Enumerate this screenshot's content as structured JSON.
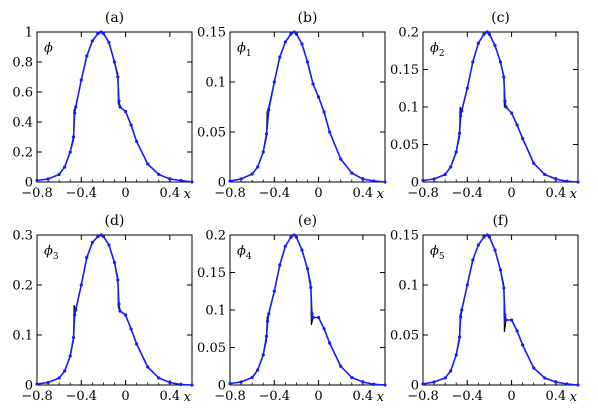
{
  "figure": {
    "panels": [
      {
        "label": "(a)",
        "var": "ϕ",
        "sub": "",
        "xlabel": "x",
        "ymax": 1.0,
        "yticks": [
          {
            "v": 0,
            "t": "0"
          },
          {
            "v": 0.2,
            "t": "0.2"
          },
          {
            "v": 0.4,
            "t": "0.4"
          },
          {
            "v": 0.6,
            "t": "0.6"
          },
          {
            "v": 0.8,
            "t": "0.8"
          },
          {
            "v": 1.0,
            "t": "1"
          }
        ]
      },
      {
        "label": "(b)",
        "var": "ϕ",
        "sub": "1",
        "xlabel": "x",
        "ymax": 0.15,
        "yticks": [
          {
            "v": 0,
            "t": "0"
          },
          {
            "v": 0.05,
            "t": "0.05"
          },
          {
            "v": 0.1,
            "t": "0.1"
          },
          {
            "v": 0.15,
            "t": "0.15"
          }
        ]
      },
      {
        "label": "(c)",
        "var": "ϕ",
        "sub": "2",
        "xlabel": "x",
        "ymax": 0.2,
        "yticks": [
          {
            "v": 0,
            "t": "0"
          },
          {
            "v": 0.05,
            "t": "0.05"
          },
          {
            "v": 0.1,
            "t": "0.1"
          },
          {
            "v": 0.15,
            "t": "0.15"
          },
          {
            "v": 0.2,
            "t": "0.2"
          }
        ]
      },
      {
        "label": "(d)",
        "var": "ϕ",
        "sub": "3",
        "xlabel": "x",
        "ymax": 0.3,
        "yticks": [
          {
            "v": 0,
            "t": "0"
          },
          {
            "v": 0.1,
            "t": "0.1"
          },
          {
            "v": 0.2,
            "t": "0.2"
          },
          {
            "v": 0.3,
            "t": "0.3"
          }
        ]
      },
      {
        "label": "(e)",
        "var": "ϕ",
        "sub": "4",
        "xlabel": "x",
        "ymax": 0.2,
        "yticks": [
          {
            "v": 0,
            "t": "0"
          },
          {
            "v": 0.05,
            "t": "0.05"
          },
          {
            "v": 0.1,
            "t": "0.1"
          },
          {
            "v": 0.15,
            "t": "0.15"
          },
          {
            "v": 0.2,
            "t": "0.2"
          }
        ]
      },
      {
        "label": "(f)",
        "var": "ϕ",
        "sub": "5",
        "xlabel": "x",
        "ymax": 0.15,
        "yticks": [
          {
            "v": 0,
            "t": "0"
          },
          {
            "v": 0.05,
            "t": "0.05"
          },
          {
            "v": 0.1,
            "t": "0.1"
          },
          {
            "v": 0.15,
            "t": "0.15"
          }
        ]
      }
    ],
    "xticks": [
      {
        "v": -0.8,
        "t": "−0.8"
      },
      {
        "v": -0.4,
        "t": "−0.4"
      },
      {
        "v": 0,
        "t": "0"
      },
      {
        "v": 0.4,
        "t": "0.4"
      }
    ]
  },
  "colors": {
    "reference": "#000000",
    "computed": "#1a1aff"
  },
  "chart_data": [
    {
      "type": "line",
      "panel": "(a)",
      "xlim": [
        -0.8,
        0.6
      ],
      "ylim": [
        0,
        1.0
      ],
      "grid": false,
      "series": [
        {
          "role": "reference",
          "x": [
            -0.8,
            -0.7,
            -0.6,
            -0.55,
            -0.5,
            -0.47,
            -0.465,
            -0.45,
            -0.4,
            -0.35,
            -0.3,
            -0.25,
            -0.22,
            -0.2,
            -0.15,
            -0.1,
            -0.07,
            -0.065,
            -0.05,
            0,
            0.05,
            0.1,
            0.2,
            0.3,
            0.4,
            0.5,
            0.6
          ],
          "y": [
            0.01,
            0.02,
            0.05,
            0.1,
            0.2,
            0.28,
            0.48,
            0.5,
            0.68,
            0.84,
            0.94,
            0.99,
            1.0,
            0.99,
            0.93,
            0.8,
            0.72,
            0.52,
            0.5,
            0.47,
            0.38,
            0.27,
            0.12,
            0.05,
            0.02,
            0.01,
            0.0
          ]
        },
        {
          "role": "computed",
          "x": [
            -0.8,
            -0.7,
            -0.6,
            -0.55,
            -0.5,
            -0.47,
            -0.46,
            -0.45,
            -0.4,
            -0.35,
            -0.3,
            -0.25,
            -0.22,
            -0.2,
            -0.15,
            -0.1,
            -0.07,
            -0.06,
            -0.05,
            0,
            0.05,
            0.1,
            0.2,
            0.3,
            0.4,
            0.5,
            0.6
          ],
          "y": [
            0.01,
            0.02,
            0.05,
            0.1,
            0.2,
            0.3,
            0.46,
            0.5,
            0.68,
            0.84,
            0.94,
            0.99,
            1.0,
            0.99,
            0.93,
            0.8,
            0.7,
            0.54,
            0.5,
            0.47,
            0.38,
            0.27,
            0.12,
            0.05,
            0.02,
            0.01,
            0.0
          ]
        }
      ]
    },
    {
      "type": "line",
      "panel": "(b)",
      "xlim": [
        -0.8,
        0.6
      ],
      "ylim": [
        0,
        0.15
      ],
      "grid": false,
      "series": [
        {
          "role": "reference",
          "x": [
            -0.8,
            -0.7,
            -0.6,
            -0.55,
            -0.5,
            -0.47,
            -0.465,
            -0.45,
            -0.4,
            -0.35,
            -0.3,
            -0.25,
            -0.22,
            -0.2,
            -0.15,
            -0.1,
            -0.05,
            0,
            0.05,
            0.1,
            0.2,
            0.3,
            0.4,
            0.5,
            0.6
          ],
          "y": [
            0.001,
            0.003,
            0.008,
            0.015,
            0.03,
            0.045,
            0.07,
            0.075,
            0.1,
            0.125,
            0.14,
            0.148,
            0.15,
            0.148,
            0.138,
            0.12,
            0.098,
            0.085,
            0.07,
            0.05,
            0.023,
            0.009,
            0.003,
            0.001,
            0.0
          ]
        },
        {
          "role": "computed",
          "x": [
            -0.8,
            -0.7,
            -0.6,
            -0.55,
            -0.5,
            -0.47,
            -0.45,
            -0.4,
            -0.35,
            -0.3,
            -0.25,
            -0.22,
            -0.2,
            -0.15,
            -0.1,
            -0.05,
            0,
            0.05,
            0.1,
            0.2,
            0.3,
            0.4,
            0.5,
            0.6
          ],
          "y": [
            0.001,
            0.003,
            0.008,
            0.015,
            0.03,
            0.048,
            0.072,
            0.1,
            0.125,
            0.14,
            0.148,
            0.15,
            0.148,
            0.138,
            0.12,
            0.098,
            0.085,
            0.07,
            0.05,
            0.023,
            0.009,
            0.003,
            0.001,
            0.0
          ]
        }
      ]
    },
    {
      "type": "line",
      "panel": "(c)",
      "xlim": [
        -0.8,
        0.6
      ],
      "ylim": [
        0,
        0.2
      ],
      "grid": false,
      "series": [
        {
          "role": "reference",
          "x": [
            -0.8,
            -0.7,
            -0.6,
            -0.55,
            -0.5,
            -0.47,
            -0.465,
            -0.45,
            -0.4,
            -0.35,
            -0.3,
            -0.25,
            -0.22,
            -0.2,
            -0.15,
            -0.1,
            -0.07,
            -0.065,
            -0.05,
            0,
            0.05,
            0.1,
            0.2,
            0.3,
            0.4,
            0.5,
            0.6
          ],
          "y": [
            0.002,
            0.004,
            0.01,
            0.02,
            0.04,
            0.06,
            0.1,
            0.095,
            0.125,
            0.16,
            0.185,
            0.197,
            0.2,
            0.197,
            0.182,
            0.16,
            0.142,
            0.1,
            0.1,
            0.092,
            0.076,
            0.058,
            0.025,
            0.01,
            0.004,
            0.001,
            0.0
          ]
        },
        {
          "role": "computed",
          "x": [
            -0.8,
            -0.7,
            -0.6,
            -0.55,
            -0.5,
            -0.47,
            -0.46,
            -0.45,
            -0.4,
            -0.35,
            -0.3,
            -0.25,
            -0.22,
            -0.2,
            -0.15,
            -0.1,
            -0.07,
            -0.06,
            -0.05,
            0,
            0.05,
            0.1,
            0.2,
            0.3,
            0.4,
            0.5,
            0.6
          ],
          "y": [
            0.002,
            0.004,
            0.01,
            0.02,
            0.04,
            0.065,
            0.088,
            0.095,
            0.125,
            0.16,
            0.185,
            0.197,
            0.2,
            0.197,
            0.182,
            0.16,
            0.14,
            0.108,
            0.1,
            0.092,
            0.076,
            0.058,
            0.025,
            0.01,
            0.004,
            0.001,
            0.0
          ]
        }
      ]
    },
    {
      "type": "line",
      "panel": "(d)",
      "xlim": [
        -0.8,
        0.6
      ],
      "ylim": [
        0,
        0.3
      ],
      "grid": false,
      "series": [
        {
          "role": "reference",
          "x": [
            -0.8,
            -0.7,
            -0.6,
            -0.55,
            -0.5,
            -0.47,
            -0.465,
            -0.45,
            -0.4,
            -0.35,
            -0.3,
            -0.25,
            -0.22,
            -0.2,
            -0.15,
            -0.1,
            -0.07,
            -0.065,
            -0.05,
            0,
            0.05,
            0.1,
            0.2,
            0.3,
            0.4,
            0.5,
            0.6
          ],
          "y": [
            0.002,
            0.005,
            0.014,
            0.028,
            0.058,
            0.09,
            0.16,
            0.15,
            0.2,
            0.255,
            0.285,
            0.297,
            0.3,
            0.297,
            0.28,
            0.245,
            0.215,
            0.155,
            0.148,
            0.14,
            0.112,
            0.082,
            0.036,
            0.014,
            0.005,
            0.001,
            0.0
          ]
        },
        {
          "role": "computed",
          "x": [
            -0.8,
            -0.7,
            -0.6,
            -0.55,
            -0.5,
            -0.47,
            -0.46,
            -0.45,
            -0.4,
            -0.35,
            -0.3,
            -0.25,
            -0.22,
            -0.2,
            -0.15,
            -0.1,
            -0.07,
            -0.06,
            -0.05,
            0,
            0.05,
            0.1,
            0.2,
            0.3,
            0.4,
            0.5,
            0.6
          ],
          "y": [
            0.002,
            0.005,
            0.014,
            0.028,
            0.058,
            0.095,
            0.14,
            0.15,
            0.2,
            0.255,
            0.285,
            0.297,
            0.3,
            0.297,
            0.28,
            0.245,
            0.21,
            0.162,
            0.148,
            0.14,
            0.112,
            0.082,
            0.036,
            0.014,
            0.005,
            0.001,
            0.0
          ]
        }
      ]
    },
    {
      "type": "line",
      "panel": "(e)",
      "xlim": [
        -0.8,
        0.6
      ],
      "ylim": [
        0,
        0.2
      ],
      "grid": false,
      "series": [
        {
          "role": "reference",
          "x": [
            -0.8,
            -0.7,
            -0.6,
            -0.55,
            -0.5,
            -0.47,
            -0.465,
            -0.45,
            -0.4,
            -0.35,
            -0.3,
            -0.25,
            -0.22,
            -0.2,
            -0.15,
            -0.1,
            -0.07,
            -0.065,
            -0.05,
            0,
            0.05,
            0.1,
            0.2,
            0.3,
            0.4,
            0.5,
            0.6
          ],
          "y": [
            0.002,
            0.004,
            0.01,
            0.02,
            0.04,
            0.06,
            0.09,
            0.095,
            0.125,
            0.16,
            0.185,
            0.197,
            0.2,
            0.197,
            0.18,
            0.155,
            0.135,
            0.08,
            0.09,
            0.09,
            0.075,
            0.056,
            0.025,
            0.01,
            0.004,
            0.001,
            0.0
          ]
        },
        {
          "role": "computed",
          "x": [
            -0.8,
            -0.7,
            -0.6,
            -0.55,
            -0.5,
            -0.47,
            -0.46,
            -0.45,
            -0.4,
            -0.35,
            -0.3,
            -0.25,
            -0.22,
            -0.2,
            -0.15,
            -0.1,
            -0.07,
            -0.06,
            -0.05,
            0,
            0.05,
            0.1,
            0.2,
            0.3,
            0.4,
            0.5,
            0.6
          ],
          "y": [
            0.002,
            0.004,
            0.01,
            0.02,
            0.04,
            0.065,
            0.085,
            0.095,
            0.125,
            0.16,
            0.185,
            0.197,
            0.2,
            0.197,
            0.18,
            0.155,
            0.13,
            0.095,
            0.09,
            0.09,
            0.075,
            0.056,
            0.025,
            0.01,
            0.004,
            0.001,
            0.0
          ]
        }
      ]
    },
    {
      "type": "line",
      "panel": "(f)",
      "xlim": [
        -0.8,
        0.6
      ],
      "ylim": [
        0,
        0.15
      ],
      "grid": false,
      "series": [
        {
          "role": "reference",
          "x": [
            -0.8,
            -0.7,
            -0.6,
            -0.55,
            -0.5,
            -0.47,
            -0.465,
            -0.45,
            -0.4,
            -0.35,
            -0.3,
            -0.25,
            -0.22,
            -0.2,
            -0.15,
            -0.1,
            -0.07,
            -0.065,
            -0.05,
            0,
            0.05,
            0.1,
            0.2,
            0.3,
            0.4,
            0.5,
            0.6
          ],
          "y": [
            0.001,
            0.003,
            0.007,
            0.014,
            0.03,
            0.045,
            0.07,
            0.075,
            0.1,
            0.125,
            0.14,
            0.148,
            0.15,
            0.148,
            0.135,
            0.115,
            0.1,
            0.053,
            0.065,
            0.065,
            0.054,
            0.04,
            0.017,
            0.007,
            0.003,
            0.001,
            0.0
          ]
        },
        {
          "role": "computed",
          "x": [
            -0.8,
            -0.7,
            -0.6,
            -0.55,
            -0.5,
            -0.47,
            -0.46,
            -0.45,
            -0.4,
            -0.35,
            -0.3,
            -0.25,
            -0.22,
            -0.2,
            -0.15,
            -0.1,
            -0.07,
            -0.06,
            -0.05,
            0,
            0.05,
            0.1,
            0.2,
            0.3,
            0.4,
            0.5,
            0.6
          ],
          "y": [
            0.001,
            0.003,
            0.007,
            0.014,
            0.03,
            0.048,
            0.068,
            0.075,
            0.1,
            0.125,
            0.14,
            0.148,
            0.15,
            0.148,
            0.135,
            0.115,
            0.097,
            0.07,
            0.065,
            0.065,
            0.054,
            0.04,
            0.017,
            0.007,
            0.003,
            0.001,
            0.0
          ]
        }
      ]
    }
  ]
}
